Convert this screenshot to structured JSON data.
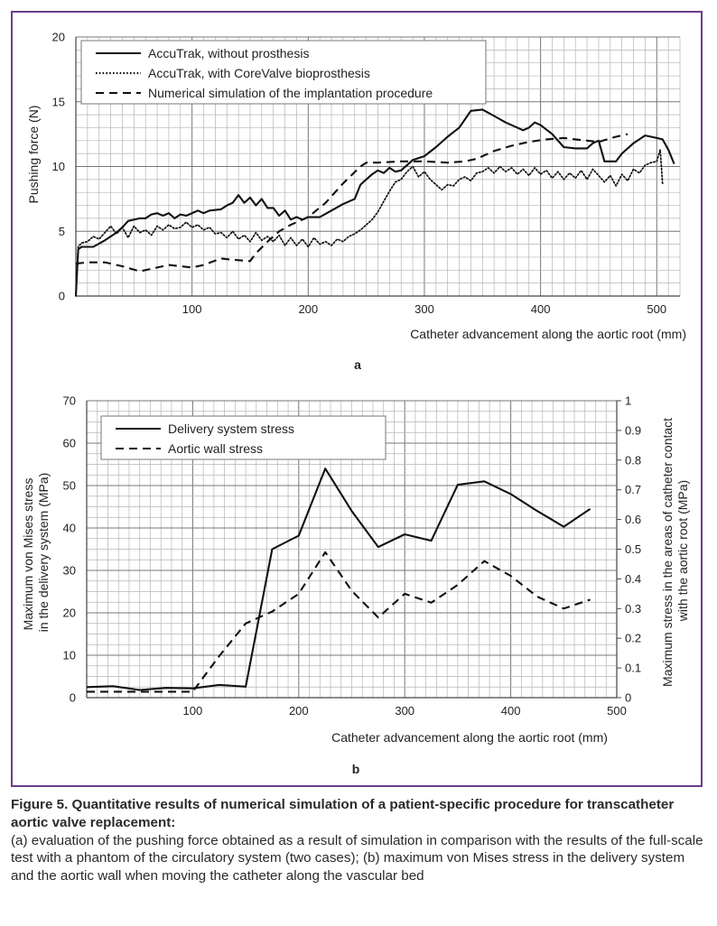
{
  "figure": {
    "caption_title": "Figure 5. Quantitative results of numerical simulation of a patient-specific procedure for transcatheter aortic valve replacement:",
    "caption_body": "(a) evaluation of the pushing force obtained as a result of simulation in comparison with the results of the full-scale test with a phantom of the circulatory system (two cases); (b) maximum von Mises stress in the delivery system and the aortic wall when moving the catheter along the vascular bed"
  },
  "chart_data": [
    {
      "panel_label": "a",
      "type": "line",
      "xlabel": "Catheter advancement along the aortic root (mm)",
      "ylabel": "Pushing force (N)",
      "xlim": [
        0,
        520
      ],
      "ylim": [
        0,
        20
      ],
      "xticks": [
        100,
        200,
        300,
        400,
        500
      ],
      "yticks": [
        0,
        5,
        10,
        15,
        20
      ],
      "grid": true,
      "legend_position": "top-left",
      "series": [
        {
          "name": "AccuTrak, without prosthesis",
          "style": "solid",
          "color": "#111111",
          "points": [
            [
              0,
              0
            ],
            [
              2,
              3.6
            ],
            [
              5,
              3.8
            ],
            [
              15,
              3.8
            ],
            [
              25,
              4.3
            ],
            [
              35,
              4.9
            ],
            [
              40,
              5.3
            ],
            [
              45,
              5.8
            ],
            [
              55,
              6.0
            ],
            [
              60,
              6.0
            ],
            [
              65,
              6.3
            ],
            [
              70,
              6.4
            ],
            [
              75,
              6.2
            ],
            [
              80,
              6.4
            ],
            [
              85,
              6.0
            ],
            [
              90,
              6.3
            ],
            [
              95,
              6.2
            ],
            [
              100,
              6.4
            ],
            [
              105,
              6.6
            ],
            [
              110,
              6.4
            ],
            [
              115,
              6.6
            ],
            [
              125,
              6.7
            ],
            [
              130,
              7.0
            ],
            [
              135,
              7.2
            ],
            [
              140,
              7.8
            ],
            [
              145,
              7.2
            ],
            [
              150,
              7.6
            ],
            [
              155,
              7.0
            ],
            [
              160,
              7.5
            ],
            [
              165,
              6.8
            ],
            [
              170,
              6.8
            ],
            [
              175,
              6.2
            ],
            [
              180,
              6.6
            ],
            [
              185,
              5.9
            ],
            [
              190,
              6.1
            ],
            [
              195,
              5.9
            ],
            [
              200,
              6.1
            ],
            [
              210,
              6.1
            ],
            [
              220,
              6.6
            ],
            [
              230,
              7.1
            ],
            [
              240,
              7.5
            ],
            [
              245,
              8.6
            ],
            [
              250,
              9.0
            ],
            [
              255,
              9.4
            ],
            [
              260,
              9.7
            ],
            [
              265,
              9.5
            ],
            [
              270,
              9.9
            ],
            [
              275,
              9.6
            ],
            [
              280,
              9.7
            ],
            [
              290,
              10.5
            ],
            [
              300,
              10.8
            ],
            [
              310,
              11.5
            ],
            [
              320,
              12.3
            ],
            [
              330,
              13.0
            ],
            [
              340,
              14.3
            ],
            [
              350,
              14.4
            ],
            [
              360,
              13.9
            ],
            [
              370,
              13.4
            ],
            [
              380,
              13.0
            ],
            [
              385,
              12.8
            ],
            [
              390,
              13.0
            ],
            [
              395,
              13.4
            ],
            [
              400,
              13.2
            ],
            [
              410,
              12.5
            ],
            [
              420,
              11.5
            ],
            [
              430,
              11.4
            ],
            [
              440,
              11.4
            ],
            [
              445,
              11.8
            ],
            [
              450,
              12.0
            ],
            [
              455,
              10.4
            ],
            [
              465,
              10.4
            ],
            [
              470,
              11.0
            ],
            [
              480,
              11.8
            ],
            [
              490,
              12.4
            ],
            [
              500,
              12.2
            ],
            [
              505,
              12.1
            ],
            [
              510,
              11.3
            ],
            [
              515,
              10.2
            ]
          ]
        },
        {
          "name": "AccuTrak, with CoreValve bioprosthesis",
          "style": "dotted",
          "color": "#111111",
          "points": [
            [
              0,
              0
            ],
            [
              2,
              3.8
            ],
            [
              5,
              4.1
            ],
            [
              10,
              4.2
            ],
            [
              15,
              4.6
            ],
            [
              20,
              4.4
            ],
            [
              25,
              4.9
            ],
            [
              30,
              5.4
            ],
            [
              35,
              4.8
            ],
            [
              40,
              5.3
            ],
            [
              45,
              4.5
            ],
            [
              50,
              5.4
            ],
            [
              55,
              4.9
            ],
            [
              60,
              5.1
            ],
            [
              65,
              4.7
            ],
            [
              70,
              5.4
            ],
            [
              75,
              5.1
            ],
            [
              80,
              5.5
            ],
            [
              85,
              5.2
            ],
            [
              90,
              5.3
            ],
            [
              95,
              5.7
            ],
            [
              100,
              5.3
            ],
            [
              105,
              5.5
            ],
            [
              110,
              5.1
            ],
            [
              115,
              5.3
            ],
            [
              120,
              4.8
            ],
            [
              125,
              4.9
            ],
            [
              130,
              4.5
            ],
            [
              135,
              5.0
            ],
            [
              140,
              4.4
            ],
            [
              145,
              4.7
            ],
            [
              150,
              4.2
            ],
            [
              155,
              4.9
            ],
            [
              160,
              4.3
            ],
            [
              165,
              4.6
            ],
            [
              170,
              4.2
            ],
            [
              175,
              4.7
            ],
            [
              180,
              3.9
            ],
            [
              185,
              4.5
            ],
            [
              190,
              3.9
            ],
            [
              195,
              4.4
            ],
            [
              200,
              3.8
            ],
            [
              205,
              4.5
            ],
            [
              210,
              4.0
            ],
            [
              215,
              4.2
            ],
            [
              220,
              3.9
            ],
            [
              225,
              4.4
            ],
            [
              230,
              4.2
            ],
            [
              235,
              4.6
            ],
            [
              240,
              4.8
            ],
            [
              245,
              5.1
            ],
            [
              250,
              5.5
            ],
            [
              255,
              5.9
            ],
            [
              260,
              6.5
            ],
            [
              265,
              7.3
            ],
            [
              270,
              8.1
            ],
            [
              275,
              8.8
            ],
            [
              280,
              9.0
            ],
            [
              285,
              9.6
            ],
            [
              290,
              10.0
            ],
            [
              295,
              9.2
            ],
            [
              300,
              9.6
            ],
            [
              305,
              9.0
            ],
            [
              310,
              8.6
            ],
            [
              315,
              8.2
            ],
            [
              320,
              8.6
            ],
            [
              325,
              8.5
            ],
            [
              330,
              9.0
            ],
            [
              335,
              9.2
            ],
            [
              340,
              8.9
            ],
            [
              345,
              9.5
            ],
            [
              350,
              9.6
            ],
            [
              355,
              9.9
            ],
            [
              360,
              9.5
            ],
            [
              365,
              10.0
            ],
            [
              370,
              9.6
            ],
            [
              375,
              9.9
            ],
            [
              380,
              9.4
            ],
            [
              385,
              9.8
            ],
            [
              390,
              9.3
            ],
            [
              395,
              9.9
            ],
            [
              400,
              9.4
            ],
            [
              405,
              9.7
            ],
            [
              410,
              9.1
            ],
            [
              415,
              9.6
            ],
            [
              420,
              9.0
            ],
            [
              425,
              9.5
            ],
            [
              430,
              9.1
            ],
            [
              435,
              9.7
            ],
            [
              440,
              9.0
            ],
            [
              445,
              9.8
            ],
            [
              450,
              9.3
            ],
            [
              455,
              8.8
            ],
            [
              460,
              9.3
            ],
            [
              465,
              8.5
            ],
            [
              470,
              9.4
            ],
            [
              475,
              8.9
            ],
            [
              480,
              9.8
            ],
            [
              485,
              9.5
            ],
            [
              490,
              10.1
            ],
            [
              495,
              10.3
            ],
            [
              500,
              10.4
            ],
            [
              503,
              11.3
            ],
            [
              505,
              8.7
            ]
          ]
        },
        {
          "name": "Numerical simulation of the implantation procedure",
          "style": "dashed",
          "color": "#111111",
          "points": [
            [
              0,
              2.5
            ],
            [
              10,
              2.6
            ],
            [
              25,
              2.6
            ],
            [
              40,
              2.3
            ],
            [
              55,
              1.9
            ],
            [
              70,
              2.2
            ],
            [
              80,
              2.4
            ],
            [
              90,
              2.3
            ],
            [
              100,
              2.2
            ],
            [
              110,
              2.4
            ],
            [
              125,
              2.9
            ],
            [
              135,
              2.8
            ],
            [
              150,
              2.7
            ],
            [
              155,
              3.3
            ],
            [
              165,
              4.2
            ],
            [
              175,
              5.0
            ],
            [
              185,
              5.5
            ],
            [
              200,
              6.1
            ],
            [
              215,
              7.2
            ],
            [
              230,
              8.7
            ],
            [
              245,
              10.0
            ],
            [
              250,
              10.3
            ],
            [
              260,
              10.3
            ],
            [
              280,
              10.4
            ],
            [
              300,
              10.4
            ],
            [
              320,
              10.3
            ],
            [
              335,
              10.4
            ],
            [
              345,
              10.6
            ],
            [
              360,
              11.2
            ],
            [
              375,
              11.6
            ],
            [
              390,
              11.9
            ],
            [
              405,
              12.1
            ],
            [
              420,
              12.2
            ],
            [
              430,
              12.1
            ],
            [
              440,
              12.0
            ],
            [
              450,
              11.9
            ],
            [
              465,
              12.3
            ],
            [
              475,
              12.5
            ]
          ]
        }
      ]
    },
    {
      "panel_label": "b",
      "type": "line",
      "xlabel": "Catheter advancement along the aortic root (mm)",
      "ylabel": "Maximum von Mises stress in the delivery system (MPa)",
      "ylabel_lines": [
        "Maximum von Mises stress",
        "in the delivery system (MPa)"
      ],
      "y2label": "Maximum stress in the areas of catheter contact with the aortic root (MPa)",
      "y2label_lines": [
        "Maximum stress in the areas of catheter contact",
        "with the aortic root (MPa)"
      ],
      "xlim": [
        0,
        500
      ],
      "ylim": [
        0,
        70
      ],
      "y2lim": [
        0,
        1
      ],
      "xticks": [
        100,
        200,
        300,
        400,
        500
      ],
      "yticks": [
        0,
        10,
        20,
        30,
        40,
        50,
        60,
        70
      ],
      "y2ticks": [
        0,
        0.1,
        0.2,
        0.3,
        0.4,
        0.5,
        0.6,
        0.7,
        0.8,
        0.9,
        1
      ],
      "grid": true,
      "legend_position": "top-left",
      "series": [
        {
          "name": "Delivery system stress",
          "style": "solid",
          "axis": "left",
          "color": "#111111",
          "x": [
            0,
            25,
            50,
            75,
            100,
            125,
            150,
            175,
            200,
            225,
            250,
            275,
            300,
            325,
            350,
            375,
            400,
            425,
            450,
            475
          ],
          "values": [
            2.5,
            2.7,
            1.8,
            2.3,
            2.2,
            3.0,
            2.6,
            35.0,
            38.2,
            54.0,
            44.0,
            35.5,
            38.5,
            37.0,
            50.2,
            51.0,
            48.0,
            44.0,
            40.3,
            44.5
          ]
        },
        {
          "name": "Aortic wall stress",
          "style": "dashed",
          "axis": "right",
          "color": "#111111",
          "x": [
            0,
            25,
            50,
            75,
            100,
            125,
            150,
            175,
            200,
            225,
            250,
            275,
            300,
            325,
            350,
            375,
            400,
            425,
            450,
            475
          ],
          "values": [
            0.02,
            0.02,
            0.02,
            0.02,
            0.02,
            0.14,
            0.25,
            0.29,
            0.35,
            0.49,
            0.36,
            0.27,
            0.35,
            0.32,
            0.38,
            0.46,
            0.41,
            0.34,
            0.3,
            0.33
          ]
        }
      ]
    }
  ]
}
